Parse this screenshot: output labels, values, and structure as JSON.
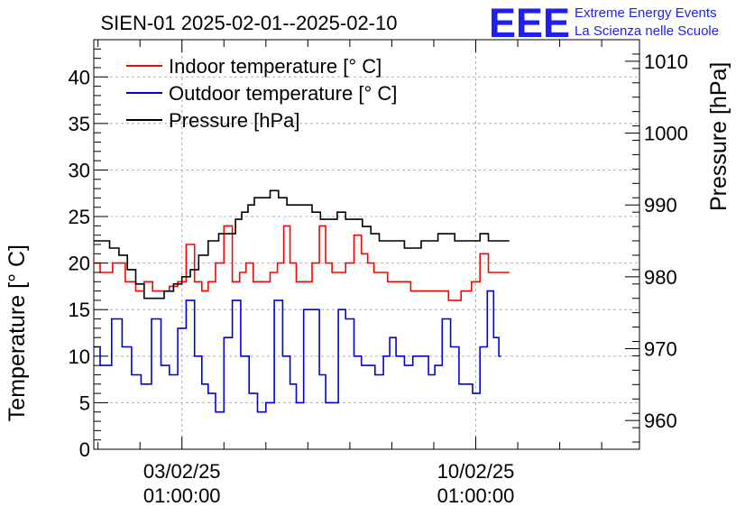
{
  "chart_data": {
    "type": "line",
    "title": "SIEN-01 2025-02-01--2025-02-10",
    "logo": {
      "text": "EEE",
      "line1": "Extreme Energy Events",
      "line2": "La Scienza nelle Scuole",
      "color": "#1f1ff0"
    },
    "ylabel": "Temperature [° C]",
    "y2label": "Pressure [hPa]",
    "ylim": [
      0,
      44
    ],
    "y2lim": [
      956,
      1013
    ],
    "xlim": [
      -2.1,
      10.9
    ],
    "yticks": [
      0,
      5,
      10,
      15,
      20,
      25,
      30,
      35,
      40
    ],
    "y2ticks": [
      960,
      970,
      980,
      990,
      1000,
      1010
    ],
    "xticks": [
      {
        "x": 0,
        "date": "03/02/25",
        "time": "01:00:00"
      },
      {
        "x": 7,
        "date": "10/02/25",
        "time": "01:00:00"
      }
    ],
    "x_unit": "days since 03/02/25 01:00:00",
    "grid": true,
    "legend_position": "top-left",
    "series": [
      {
        "name": "Indoor temperature [° C]",
        "axis": "left",
        "color": "#ff0000",
        "x": [
          -2.1,
          -1.8,
          -1.5,
          -1.2,
          -1.0,
          -0.8,
          -0.6,
          -0.4,
          -0.2,
          0,
          0.2,
          0.4,
          0.55,
          0.7,
          0.9,
          1.1,
          1.3,
          1.45,
          1.6,
          1.8,
          2.0,
          2.2,
          2.35,
          2.5,
          2.65,
          2.8,
          3.0,
          3.2,
          3.35,
          3.5,
          3.65,
          3.8,
          4.0,
          4.2,
          4.35,
          4.5,
          4.65,
          4.8,
          5.0,
          5.3,
          5.6,
          5.9,
          6.2,
          6.5,
          6.8,
          7.0,
          7.2,
          7.4,
          7.55,
          7.7,
          7.8
        ],
        "y": [
          20,
          19,
          20,
          18,
          17,
          18,
          17,
          17,
          17.5,
          18,
          22,
          18,
          17,
          18,
          20,
          24,
          18,
          19,
          20,
          18,
          18,
          19,
          20,
          24,
          20,
          18,
          18,
          20,
          24,
          20,
          19,
          19,
          20,
          23,
          21,
          20,
          19,
          19,
          18,
          18,
          17,
          17,
          17,
          16,
          17,
          18,
          21,
          19,
          19,
          19,
          19
        ]
      },
      {
        "name": "Outdoor temperature [° C]",
        "axis": "left",
        "color": "#0000dd",
        "x": [
          -2.1,
          -1.8,
          -1.55,
          -1.3,
          -1.1,
          -0.85,
          -0.6,
          -0.4,
          -0.2,
          0,
          0.2,
          0.4,
          0.55,
          0.7,
          0.9,
          1.1,
          1.3,
          1.5,
          1.7,
          1.9,
          2.1,
          2.3,
          2.5,
          2.65,
          2.8,
          3.0,
          3.2,
          3.35,
          3.5,
          3.65,
          3.8,
          4.0,
          4.2,
          4.35,
          4.5,
          4.7,
          4.9,
          5.0,
          5.2,
          5.4,
          5.6,
          5.8,
          5.95,
          6.1,
          6.3,
          6.5,
          6.7,
          6.85,
          7.0,
          7.2,
          7.35,
          7.5,
          7.6
        ],
        "y": [
          11,
          9,
          14,
          11,
          8,
          7,
          14,
          9,
          8,
          13,
          16,
          10,
          7,
          6,
          4,
          12,
          16,
          10,
          6,
          4,
          5,
          16,
          10,
          7,
          5,
          15,
          15,
          8,
          5,
          5,
          15,
          14,
          10,
          9,
          9,
          8,
          10,
          12,
          10,
          9,
          10,
          10,
          8,
          9,
          14,
          11,
          7,
          7,
          6,
          11,
          17,
          12,
          10
        ]
      },
      {
        "name": "Pressure [hPa]",
        "axis": "right",
        "color": "#000000",
        "x": [
          -2.1,
          -1.85,
          -1.6,
          -1.4,
          -1.2,
          -1.0,
          -0.8,
          -0.55,
          -0.3,
          -0.1,
          0.1,
          0.3,
          0.5,
          0.75,
          1.0,
          1.2,
          1.35,
          1.5,
          1.65,
          1.8,
          2.0,
          2.2,
          2.4,
          2.6,
          2.8,
          3.0,
          3.2,
          3.4,
          3.6,
          3.8,
          4.0,
          4.2,
          4.4,
          4.6,
          4.8,
          5.0,
          5.2,
          5.4,
          5.6,
          5.8,
          6.0,
          6.2,
          6.4,
          6.6,
          6.8,
          7.0,
          7.2,
          7.4,
          7.55,
          7.8
        ],
        "y": [
          985,
          985,
          984,
          983,
          981,
          979,
          977,
          977,
          978,
          979,
          980,
          981,
          983,
          985,
          986,
          986,
          988,
          989,
          990,
          991,
          991,
          992,
          991,
          990,
          990,
          990,
          989,
          988,
          988,
          989,
          988,
          988,
          987,
          986,
          985,
          985,
          985,
          984,
          984,
          985,
          985,
          986,
          986,
          985,
          985,
          985,
          986,
          985,
          985,
          985
        ]
      }
    ]
  }
}
